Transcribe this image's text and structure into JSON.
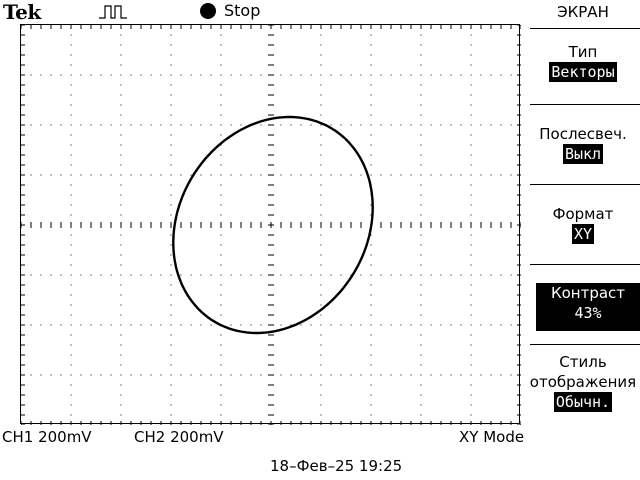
{
  "header": {
    "brand": "Tek",
    "trigger_icon": "pulse-trigger-icon",
    "run_status": "Stop"
  },
  "menu": {
    "title": "ЭКРАН",
    "items": [
      {
        "label": "Тип",
        "value": "Векторы"
      },
      {
        "label": "Послесвеч.",
        "value": "Выкл"
      },
      {
        "label": "Формат",
        "value": "XY"
      },
      {
        "label": "Контраст",
        "value": "43%"
      },
      {
        "label": "Стиль",
        "label2": "отображения",
        "value": "Обычн."
      }
    ]
  },
  "status": {
    "ch1": "CH1  200mV",
    "ch2": "CH2  200mV",
    "mode": "XY Mode",
    "datetime": "18–Фев–25 19:25"
  },
  "colors": {
    "trace": "#000000",
    "grid": "#000000",
    "background": "#ffffff"
  }
}
